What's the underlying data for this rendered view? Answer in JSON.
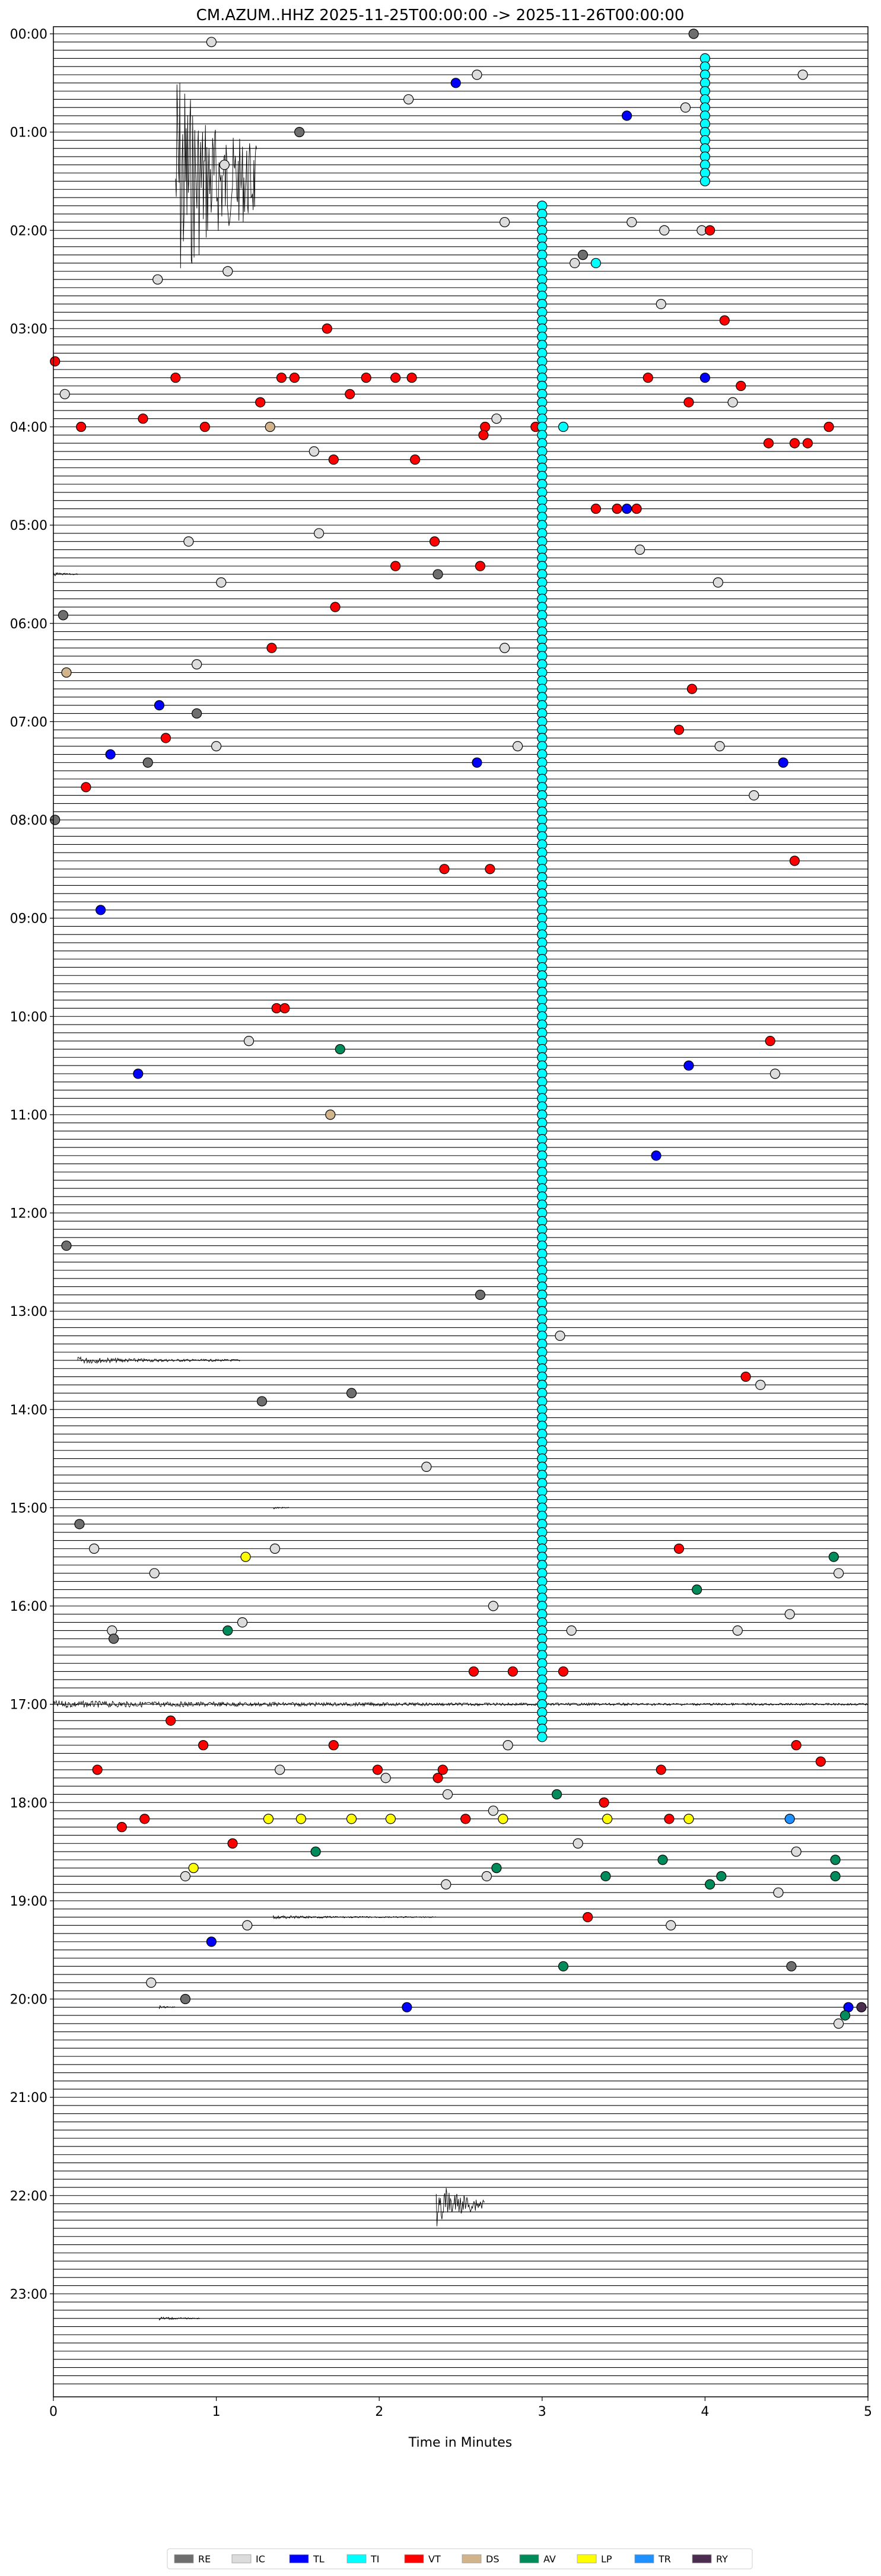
{
  "chart_data": {
    "type": "scatter",
    "title": "CM.AZUM..HHZ  2025-11-25T00:00:00 -> 2025-11-26T00:00:00",
    "xlabel": "Time in Minutes",
    "ylabel": "",
    "xlim": [
      0,
      5
    ],
    "ylim_hours": [
      0,
      24
    ],
    "rows_per_hour": 12,
    "x_ticks": [
      "0",
      "1",
      "2",
      "3",
      "4",
      "5"
    ],
    "y_ticks": [
      "00:00",
      "01:00",
      "02:00",
      "03:00",
      "04:00",
      "05:00",
      "06:00",
      "07:00",
      "08:00",
      "09:00",
      "10:00",
      "11:00",
      "12:00",
      "13:00",
      "14:00",
      "15:00",
      "16:00",
      "17:00",
      "18:00",
      "19:00",
      "20:00",
      "21:00",
      "22:00",
      "23:00"
    ],
    "categories": {
      "RE": "#6e6e6e",
      "IC": "#dcdcdc",
      "TL": "#0000ff",
      "TI": "#00ffff",
      "VT": "#ff0000",
      "DS": "#d2b48c",
      "AV": "#008b5a",
      "LP": "#ffff00",
      "TR": "#1e90ff",
      "RY": "#4b2d50"
    },
    "legend": [
      "RE",
      "IC",
      "TL",
      "TI",
      "VT",
      "DS",
      "AV",
      "LP",
      "TR",
      "RY"
    ],
    "legend_position": "bottom",
    "waveform_events": [
      {
        "row": 18,
        "x": 0.75,
        "amp": 220,
        "dur": 0.5
      },
      {
        "row": 66,
        "x": 0.0,
        "amp": 4,
        "dur": 0.15
      },
      {
        "row": 162,
        "x": 0.15,
        "amp": 6,
        "dur": 1.0
      },
      {
        "row": 180,
        "x": 1.35,
        "amp": 3,
        "dur": 0.1
      },
      {
        "row": 204,
        "x": 0.0,
        "amp": 6,
        "dur": 5.0
      },
      {
        "row": 230,
        "x": 1.35,
        "amp": 3,
        "dur": 1.0
      },
      {
        "row": 241,
        "x": 0.65,
        "amp": 3,
        "dur": 0.1
      },
      {
        "row": 265,
        "x": 2.35,
        "amp": 40,
        "dur": 0.3
      },
      {
        "row": 279,
        "x": 0.65,
        "amp": 3,
        "dur": 0.25
      }
    ],
    "events": [
      {
        "t": "00:00",
        "x": 3.93,
        "c": "RE"
      },
      {
        "t": "00:01",
        "x": 0.97,
        "c": "IC"
      },
      {
        "t": "00:05",
        "x": 2.6,
        "c": "IC"
      },
      {
        "t": "00:05",
        "x": 4.6,
        "c": "IC"
      },
      {
        "t": "00:06",
        "x": 2.47,
        "c": "TL"
      },
      {
        "t": "00:08",
        "x": 2.18,
        "c": "IC"
      },
      {
        "t": "00:09",
        "x": 3.88,
        "c": "IC"
      },
      {
        "t": "00:10",
        "x": 3.52,
        "c": "TL"
      },
      {
        "t": "00:12",
        "x": 1.51,
        "c": "RE"
      },
      {
        "t": "00:16",
        "x": 1.05,
        "c": "IC"
      },
      {
        "t": "00:23",
        "x": 2.77,
        "c": "IC"
      },
      {
        "t": "00:23",
        "x": 3.55,
        "c": "IC"
      },
      {
        "t": "00:24",
        "x": 3.75,
        "c": "IC"
      },
      {
        "t": "00:24",
        "x": 3.98,
        "c": "IC"
      },
      {
        "t": "00:24",
        "x": 4.03,
        "c": "VT"
      },
      {
        "t": "00:27",
        "x": 3.25,
        "c": "RE"
      },
      {
        "t": "00:28",
        "x": 3.2,
        "c": "IC"
      },
      {
        "t": "00:28",
        "x": 3.33,
        "c": "TI"
      },
      {
        "t": "00:29",
        "x": 1.07,
        "c": "IC"
      },
      {
        "t": "00:30",
        "x": 0.64,
        "c": "IC"
      },
      {
        "t": "00:33",
        "x": 3.73,
        "c": "IC"
      },
      {
        "t": "00:35",
        "x": 4.12,
        "c": "VT"
      },
      {
        "t": "00:36",
        "x": 1.68,
        "c": "VT"
      },
      {
        "t": "00:40",
        "x": 0.01,
        "c": "VT"
      },
      {
        "t": "00:42",
        "x": 0.75,
        "c": "VT"
      },
      {
        "t": "00:42",
        "x": 1.4,
        "c": "VT"
      },
      {
        "t": "00:42",
        "x": 1.48,
        "c": "VT"
      },
      {
        "t": "00:42",
        "x": 1.92,
        "c": "VT"
      },
      {
        "t": "00:42",
        "x": 2.1,
        "c": "VT"
      },
      {
        "t": "00:42",
        "x": 2.2,
        "c": "VT"
      },
      {
        "t": "00:42",
        "x": 3.65,
        "c": "VT"
      },
      {
        "t": "00:42",
        "x": 4.0,
        "c": "TL"
      },
      {
        "t": "00:43",
        "x": 4.22,
        "c": "VT"
      },
      {
        "t": "00:44",
        "x": 0.07,
        "c": "IC"
      },
      {
        "t": "00:44",
        "x": 1.82,
        "c": "VT"
      },
      {
        "t": "00:45",
        "x": 1.27,
        "c": "VT"
      },
      {
        "t": "00:45",
        "x": 3.9,
        "c": "VT"
      },
      {
        "t": "00:45",
        "x": 4.17,
        "c": "IC"
      },
      {
        "t": "00:47",
        "x": 0.55,
        "c": "VT"
      },
      {
        "t": "00:47",
        "x": 2.72,
        "c": "IC"
      },
      {
        "t": "00:48",
        "x": 0.17,
        "c": "VT"
      },
      {
        "t": "00:48",
        "x": 0.93,
        "c": "VT"
      },
      {
        "t": "00:48",
        "x": 1.33,
        "c": "DS"
      },
      {
        "t": "00:48",
        "x": 2.65,
        "c": "VT"
      },
      {
        "t": "00:48",
        "x": 2.96,
        "c": "VT"
      },
      {
        "t": "00:48",
        "x": 3.13,
        "c": "TI"
      },
      {
        "t": "00:48",
        "x": 4.76,
        "c": "VT"
      },
      {
        "t": "00:49",
        "x": 2.64,
        "c": "VT"
      },
      {
        "t": "00:50",
        "x": 4.39,
        "c": "VT"
      },
      {
        "t": "00:50",
        "x": 4.55,
        "c": "VT"
      },
      {
        "t": "00:50",
        "x": 4.63,
        "c": "VT"
      },
      {
        "t": "00:51",
        "x": 1.6,
        "c": "IC"
      },
      {
        "t": "00:52",
        "x": 1.72,
        "c": "VT"
      },
      {
        "t": "00:52",
        "x": 2.22,
        "c": "VT"
      },
      {
        "t": "00:58",
        "x": 3.33,
        "c": "VT"
      },
      {
        "t": "00:58",
        "x": 3.46,
        "c": "VT"
      },
      {
        "t": "00:58",
        "x": 3.52,
        "c": "TL"
      },
      {
        "t": "00:58",
        "x": 3.58,
        "c": "VT"
      },
      {
        "t": "01:01",
        "x": 1.63,
        "c": "IC"
      },
      {
        "t": "01:02",
        "x": 0.83,
        "c": "IC"
      },
      {
        "t": "01:02",
        "x": 2.34,
        "c": "VT"
      },
      {
        "t": "01:03",
        "x": 3.6,
        "c": "IC"
      },
      {
        "t": "01:05",
        "x": 2.1,
        "c": "VT"
      },
      {
        "t": "01:05",
        "x": 2.62,
        "c": "VT"
      },
      {
        "t": "01:06",
        "x": 2.36,
        "c": "RE"
      },
      {
        "t": "01:07",
        "x": 1.03,
        "c": "IC"
      },
      {
        "t": "01:07",
        "x": 4.08,
        "c": "IC"
      },
      {
        "t": "01:10",
        "x": 1.73,
        "c": "VT"
      },
      {
        "t": "01:11",
        "x": 0.06,
        "c": "RE"
      },
      {
        "t": "01:15",
        "x": 1.34,
        "c": "VT"
      },
      {
        "t": "01:15",
        "x": 2.77,
        "c": "IC"
      },
      {
        "t": "01:17",
        "x": 0.88,
        "c": "IC"
      },
      {
        "t": "01:18",
        "x": 0.08,
        "c": "DS"
      },
      {
        "t": "01:20",
        "x": 3.92,
        "c": "VT"
      },
      {
        "t": "01:22",
        "x": 0.65,
        "c": "TL"
      },
      {
        "t": "01:23",
        "x": 0.88,
        "c": "RE"
      },
      {
        "t": "01:25",
        "x": 3.84,
        "c": "VT"
      },
      {
        "t": "01:26",
        "x": 0.69,
        "c": "VT"
      },
      {
        "t": "01:27",
        "x": 1.0,
        "c": "IC"
      },
      {
        "t": "01:27",
        "x": 2.85,
        "c": "IC"
      },
      {
        "t": "01:27",
        "x": 4.09,
        "c": "IC"
      },
      {
        "t": "01:28",
        "x": 0.35,
        "c": "TL"
      },
      {
        "t": "01:29",
        "x": 0.58,
        "c": "RE"
      },
      {
        "t": "01:29",
        "x": 2.6,
        "c": "TL"
      },
      {
        "t": "01:29",
        "x": 4.48,
        "c": "TL"
      },
      {
        "t": "01:32",
        "x": 0.2,
        "c": "VT"
      },
      {
        "t": "01:32",
        "x": 3.0,
        "c": "VT"
      },
      {
        "t": "01:33",
        "x": 4.3,
        "c": "IC"
      },
      {
        "t": "01:36",
        "x": 0.01,
        "c": "RE"
      },
      {
        "t": "01:41",
        "x": 4.55,
        "c": "VT"
      },
      {
        "t": "01:42",
        "x": 2.4,
        "c": "VT"
      },
      {
        "t": "01:42",
        "x": 2.68,
        "c": "VT"
      },
      {
        "t": "01:47",
        "x": 0.29,
        "c": "TL"
      },
      {
        "t": "01:59",
        "x": 1.37,
        "c": "VT"
      },
      {
        "t": "01:59",
        "x": 1.42,
        "c": "VT"
      },
      {
        "t": "02:03",
        "x": 4.4,
        "c": "VT"
      },
      {
        "t": "02:03",
        "x": 1.2,
        "c": "IC"
      },
      {
        "t": "02:04",
        "x": 1.76,
        "c": "AV"
      },
      {
        "t": "02:06",
        "x": 3.9,
        "c": "TL"
      },
      {
        "t": "02:07",
        "x": 0.52,
        "c": "TL"
      },
      {
        "t": "02:07",
        "x": 4.43,
        "c": "IC"
      },
      {
        "t": "02:12",
        "x": 1.7,
        "c": "DS"
      },
      {
        "t": "02:17",
        "x": 3.7,
        "c": "TL"
      },
      {
        "t": "02:28",
        "x": 0.08,
        "c": "RE"
      },
      {
        "t": "02:34",
        "x": 2.62,
        "c": "RE"
      },
      {
        "t": "02:39",
        "x": 3.11,
        "c": "IC"
      },
      {
        "t": "02:44",
        "x": 4.25,
        "c": "VT"
      },
      {
        "t": "02:45",
        "x": 4.34,
        "c": "IC"
      },
      {
        "t": "02:47",
        "x": 1.28,
        "c": "RE"
      },
      {
        "t": "02:46",
        "x": 1.83,
        "c": "RE"
      },
      {
        "t": "02:55",
        "x": 2.29,
        "c": "IC"
      },
      {
        "t": "03:02",
        "x": 0.16,
        "c": "RE"
      },
      {
        "t": "03:05",
        "x": 3.84,
        "c": "VT"
      },
      {
        "t": "03:05",
        "x": 0.25,
        "c": "IC"
      },
      {
        "t": "03:05",
        "x": 1.36,
        "c": "IC"
      },
      {
        "t": "03:06",
        "x": 4.79,
        "c": "AV"
      },
      {
        "t": "03:06",
        "x": 1.18,
        "c": "LP"
      },
      {
        "t": "03:08",
        "x": 0.62,
        "c": "IC"
      },
      {
        "t": "03:08",
        "x": 4.82,
        "c": "IC"
      },
      {
        "t": "03:10",
        "x": 3.95,
        "c": "AV"
      },
      {
        "t": "03:12",
        "x": 2.7,
        "c": "IC"
      },
      {
        "t": "03:13",
        "x": 4.52,
        "c": "IC"
      },
      {
        "t": "03:14",
        "x": 1.16,
        "c": "IC"
      },
      {
        "t": "03:15",
        "x": 4.2,
        "c": "IC"
      },
      {
        "t": "03:15",
        "x": 1.07,
        "c": "AV"
      },
      {
        "t": "03:15",
        "x": 3.18,
        "c": "IC"
      },
      {
        "t": "03:15",
        "x": 0.36,
        "c": "IC"
      },
      {
        "t": "03:16",
        "x": 0.37,
        "c": "RE"
      },
      {
        "t": "03:20",
        "x": 2.58,
        "c": "VT"
      },
      {
        "t": "03:20",
        "x": 2.82,
        "c": "VT"
      },
      {
        "t": "03:20",
        "x": 3.13,
        "c": "VT"
      },
      {
        "t": "03:26",
        "x": 0.72,
        "c": "VT"
      },
      {
        "t": "03:29",
        "x": 0.92,
        "c": "VT"
      },
      {
        "t": "03:29",
        "x": 1.72,
        "c": "VT"
      },
      {
        "t": "03:29",
        "x": 2.79,
        "c": "IC"
      },
      {
        "t": "03:29",
        "x": 4.56,
        "c": "VT"
      },
      {
        "t": "03:31",
        "x": 4.71,
        "c": "VT"
      },
      {
        "t": "03:32",
        "x": 0.27,
        "c": "VT"
      },
      {
        "t": "03:32",
        "x": 1.39,
        "c": "IC"
      },
      {
        "t": "03:32",
        "x": 1.99,
        "c": "VT"
      },
      {
        "t": "03:32",
        "x": 2.39,
        "c": "VT"
      },
      {
        "t": "03:32",
        "x": 3.73,
        "c": "VT"
      },
      {
        "t": "03:33",
        "x": 2.04,
        "c": "IC"
      },
      {
        "t": "03:33",
        "x": 2.36,
        "c": "VT"
      },
      {
        "t": "03:35",
        "x": 2.42,
        "c": "IC"
      },
      {
        "t": "03:35",
        "x": 3.09,
        "c": "AV"
      },
      {
        "t": "03:36",
        "x": 3.38,
        "c": "VT"
      },
      {
        "t": "03:37",
        "x": 2.7,
        "c": "IC"
      },
      {
        "t": "03:38",
        "x": 2.53,
        "c": "VT"
      },
      {
        "t": "03:38",
        "x": 0.56,
        "c": "VT"
      },
      {
        "t": "03:38",
        "x": 1.32,
        "c": "LP"
      },
      {
        "t": "03:38",
        "x": 1.52,
        "c": "LP"
      },
      {
        "t": "03:38",
        "x": 1.83,
        "c": "LP"
      },
      {
        "t": "03:38",
        "x": 2.07,
        "c": "LP"
      },
      {
        "t": "03:38",
        "x": 2.76,
        "c": "LP"
      },
      {
        "t": "03:38",
        "x": 3.4,
        "c": "LP"
      },
      {
        "t": "03:38",
        "x": 3.78,
        "c": "VT"
      },
      {
        "t": "03:38",
        "x": 3.9,
        "c": "LP"
      },
      {
        "t": "03:38",
        "x": 4.52,
        "c": "TR"
      },
      {
        "t": "03:39",
        "x": 0.42,
        "c": "VT"
      },
      {
        "t": "03:41",
        "x": 1.1,
        "c": "VT"
      },
      {
        "t": "03:41",
        "x": 3.22,
        "c": "IC"
      },
      {
        "t": "03:42",
        "x": 1.61,
        "c": "AV"
      },
      {
        "t": "03:42",
        "x": 4.56,
        "c": "IC"
      },
      {
        "t": "03:43",
        "x": 3.74,
        "c": "AV"
      },
      {
        "t": "03:43",
        "x": 4.8,
        "c": "AV"
      },
      {
        "t": "03:44",
        "x": 0.86,
        "c": "LP"
      },
      {
        "t": "03:44",
        "x": 2.72,
        "c": "AV"
      },
      {
        "t": "03:45",
        "x": 0.81,
        "c": "IC"
      },
      {
        "t": "03:45",
        "x": 2.66,
        "c": "IC"
      },
      {
        "t": "03:45",
        "x": 3.39,
        "c": "AV"
      },
      {
        "t": "03:45",
        "x": 4.1,
        "c": "AV"
      },
      {
        "t": "03:45",
        "x": 4.8,
        "c": "AV"
      },
      {
        "t": "03:46",
        "x": 2.41,
        "c": "IC"
      },
      {
        "t": "03:46",
        "x": 4.03,
        "c": "AV"
      },
      {
        "t": "03:47",
        "x": 4.45,
        "c": "IC"
      },
      {
        "t": "03:50",
        "x": 3.28,
        "c": "VT"
      },
      {
        "t": "03:51",
        "x": 1.19,
        "c": "IC"
      },
      {
        "t": "03:51",
        "x": 3.79,
        "c": "IC"
      },
      {
        "t": "03:53",
        "x": 0.97,
        "c": "TL"
      },
      {
        "t": "03:56",
        "x": 3.13,
        "c": "AV"
      },
      {
        "t": "03:56",
        "x": 4.53,
        "c": "RE"
      },
      {
        "t": "03:58",
        "x": 0.6,
        "c": "IC"
      },
      {
        "t": "04:00",
        "x": 0.81,
        "c": "RE"
      },
      {
        "t": "04:01",
        "x": 2.17,
        "c": "TL"
      },
      {
        "t": "04:01",
        "x": 4.88,
        "c": "TL"
      },
      {
        "t": "04:01",
        "x": 4.96,
        "c": "RY"
      },
      {
        "t": "04:02",
        "x": 4.86,
        "c": "AV"
      },
      {
        "t": "04:03",
        "x": 4.82,
        "c": "IC"
      }
    ],
    "event_units": "t = elapsed time HH:MM counted in units of (row_hour_offset:minutes) mapped onto the 24-hour row grid"
  }
}
